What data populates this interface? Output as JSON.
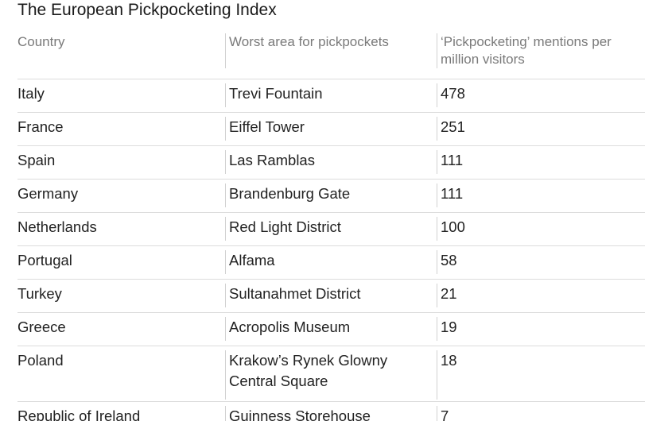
{
  "page": {
    "title": "The European Pickpocketing Index"
  },
  "chart_data": {
    "type": "table",
    "title": "The European Pickpocketing Index",
    "columns": [
      "Country",
      "Worst area for pickpockets",
      "‘Pickpocketing’ mentions per million visitors"
    ],
    "rows": [
      {
        "country": "Italy",
        "area": "Trevi Fountain",
        "mentions": 478
      },
      {
        "country": "France",
        "area": "Eiffel Tower",
        "mentions": 251
      },
      {
        "country": "Spain",
        "area": "Las Ramblas",
        "mentions": 111
      },
      {
        "country": "Germany",
        "area": "Brandenburg Gate",
        "mentions": 111
      },
      {
        "country": "Netherlands",
        "area": "Red Light District",
        "mentions": 100
      },
      {
        "country": "Portugal",
        "area": "Alfama",
        "mentions": 58
      },
      {
        "country": "Turkey",
        "area": "Sultanahmet District",
        "mentions": 21
      },
      {
        "country": "Greece",
        "area": "Acropolis Museum",
        "mentions": 19
      },
      {
        "country": "Poland",
        "area": "Krakow’s Rynek Glowny Central Square",
        "mentions": 18
      },
      {
        "country": "Republic of Ireland",
        "area": "Guinness Storehouse",
        "mentions": 7
      }
    ]
  }
}
